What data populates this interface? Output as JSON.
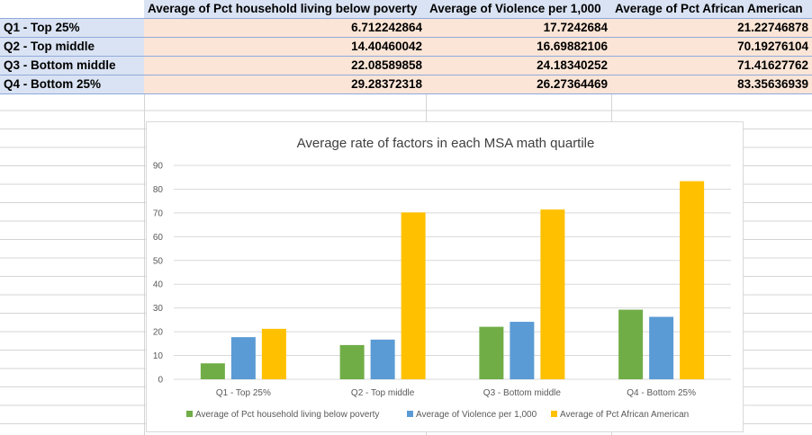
{
  "table": {
    "headers": [
      "",
      "Average of Pct household living below poverty",
      "Average of Violence per 1,000",
      "Average of Pct African American"
    ],
    "rows": [
      {
        "label": "Q1 - Top 25%",
        "values": [
          "6.712242864",
          "17.7242684",
          "21.22746878"
        ]
      },
      {
        "label": "Q2 - Top middle",
        "values": [
          "14.40460042",
          "16.69882106",
          "70.19276104"
        ]
      },
      {
        "label": "Q3 - Bottom middle",
        "values": [
          "22.08589858",
          "24.18340252",
          "71.41627762"
        ]
      },
      {
        "label": "Q4 - Bottom 25%",
        "values": [
          "29.28372318",
          "26.27364469",
          "83.35636939"
        ]
      }
    ]
  },
  "chart_data": {
    "type": "bar",
    "title": "Average rate of factors in each MSA math quartile",
    "categories": [
      "Q1 - Top 25%",
      "Q2 - Top middle",
      "Q3 - Bottom middle",
      "Q4 - Bottom 25%"
    ],
    "series": [
      {
        "name": "Average of Pct household living below poverty",
        "color": "#70ad47",
        "values": [
          6.712242864,
          14.40460042,
          22.08589858,
          29.28372318
        ]
      },
      {
        "name": "Average of Violence per 1,000",
        "color": "#5b9bd5",
        "values": [
          17.7242684,
          16.69882106,
          24.18340252,
          26.27364469
        ]
      },
      {
        "name": "Average of Pct African American",
        "color": "#ffc000",
        "values": [
          21.22746878,
          70.19276104,
          71.41627762,
          83.35636939
        ]
      }
    ],
    "ylim": [
      0,
      90
    ],
    "yticks": [
      0,
      10,
      20,
      30,
      40,
      50,
      60,
      70,
      80,
      90
    ],
    "grid": true,
    "legend": "bottom"
  }
}
